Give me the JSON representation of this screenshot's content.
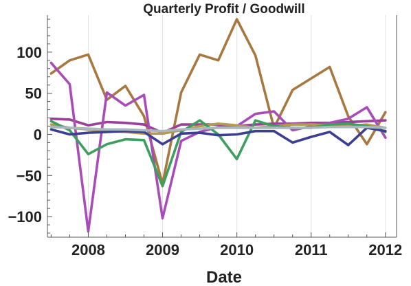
{
  "chart_data": {
    "type": "line",
    "title": "Quarterly Profit / Goodwill",
    "xlabel": "Date",
    "ylabel": "",
    "xlim": [
      2007.45,
      2012.15
    ],
    "ylim": [
      -125,
      145
    ],
    "x_ticks": [
      2008,
      2009,
      2010,
      2011,
      2012
    ],
    "x_tick_labels": [
      "2008",
      "2009",
      "2010",
      "2011",
      "2012"
    ],
    "y_ticks": [
      -100,
      -50,
      0,
      50,
      100
    ],
    "y_tick_labels": [
      "−100",
      "−50",
      "0",
      "50",
      "100"
    ],
    "grid": "vertical lines at major x ticks",
    "x": [
      2007.5,
      2007.75,
      2008.0,
      2008.25,
      2008.5,
      2008.75,
      2009.0,
      2009.25,
      2009.5,
      2009.75,
      2010.0,
      2010.25,
      2010.5,
      2010.75,
      2011.0,
      2011.25,
      2011.5,
      2011.75,
      2012.0
    ],
    "series": [
      {
        "color": "#a7783f",
        "values": [
          74,
          90,
          97,
          42,
          59,
          22,
          -60,
          51,
          97,
          90,
          140,
          96,
          8,
          54,
          68,
          82,
          22,
          -12,
          27
        ]
      },
      {
        "color": "#9c3f98",
        "values": [
          19,
          18,
          11,
          15,
          14,
          12,
          2,
          12,
          12,
          12,
          10,
          12,
          13,
          13,
          14,
          14,
          15,
          16,
          17
        ]
      },
      {
        "color": "#a94bb8",
        "values": [
          87,
          61,
          -118,
          51,
          35,
          48,
          -102,
          -8,
          3,
          9,
          10,
          25,
          28,
          5,
          10,
          14,
          19,
          33,
          -4
        ]
      },
      {
        "color": "#b39a52",
        "values": [
          12,
          8,
          6,
          4,
          3,
          1,
          1,
          5,
          10,
          13,
          11,
          8,
          10,
          12,
          12,
          11,
          10,
          12,
          8
        ]
      },
      {
        "color": "#3d9e5e",
        "values": [
          16,
          5,
          -24,
          -12,
          -6,
          -7,
          -63,
          3,
          17,
          0,
          -30,
          17,
          10,
          8,
          8,
          12,
          13,
          10,
          3
        ]
      },
      {
        "color": "#3c3f91",
        "values": [
          6,
          0,
          2,
          3,
          4,
          3,
          -12,
          1,
          2,
          -1,
          0,
          4,
          4,
          -10,
          -3,
          3,
          -13,
          8,
          4
        ]
      },
      {
        "color": "#a9b8bf",
        "values": [
          9,
          8,
          7,
          6,
          6,
          5,
          4,
          6,
          7,
          8,
          8,
          8,
          8,
          8,
          8,
          9,
          9,
          9,
          8
        ]
      }
    ]
  }
}
